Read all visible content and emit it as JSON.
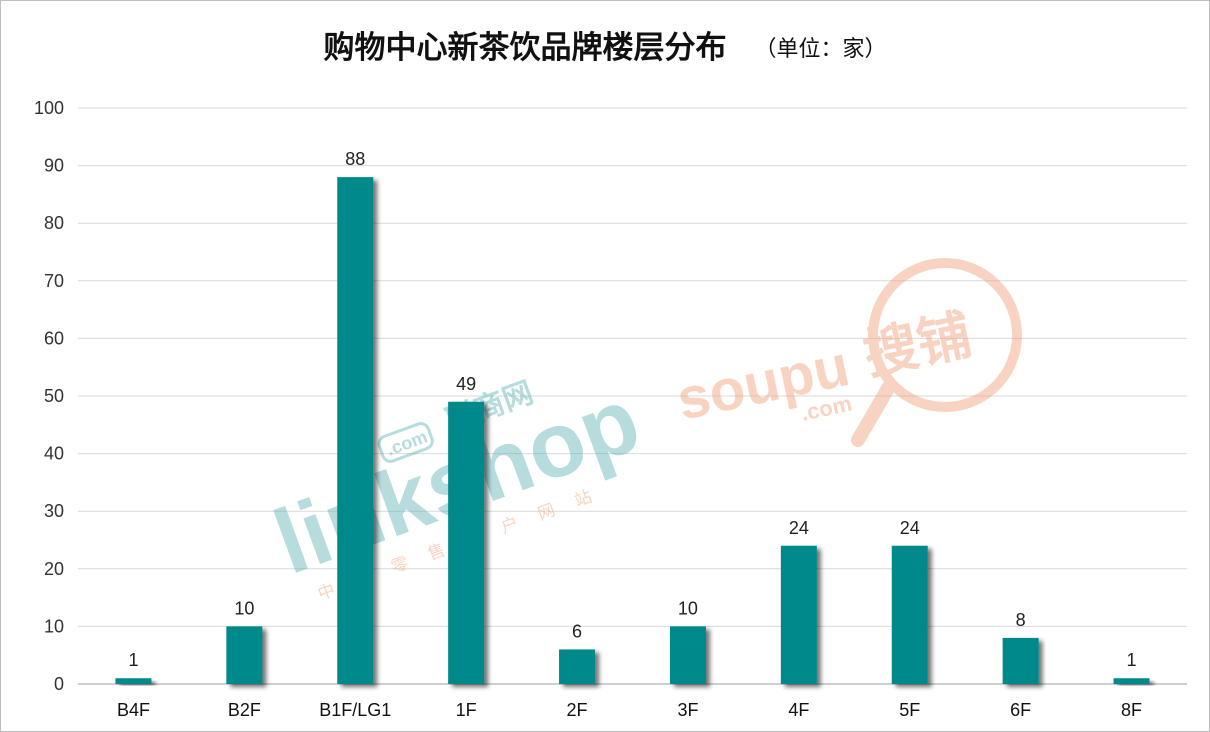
{
  "header": {
    "title": "购物中心新茶饮品牌楼层分布",
    "unit": "（单位：家）"
  },
  "watermarks": {
    "linkshop": {
      "brand": "linkshop",
      "com": ".com",
      "cn": "联商网",
      "sub": "中国零售门户网站"
    },
    "soupu": {
      "brand": "soupu",
      "cn": "搜铺",
      "com": ".com"
    }
  },
  "colors": {
    "bar": "#00898a",
    "grid": "#d9d9d9",
    "axis": "#bfbfbf",
    "watermark_teal": "#5fb3b8",
    "watermark_orange": "#f2a07a"
  },
  "chart_data": {
    "type": "bar",
    "title": "购物中心新茶饮品牌楼层分布",
    "unit": "（单位：家）",
    "categories": [
      "B4F",
      "B2F",
      "B1F/LG1",
      "1F",
      "2F",
      "3F",
      "4F",
      "5F",
      "6F",
      "8F"
    ],
    "values": [
      1,
      10,
      88,
      49,
      6,
      10,
      24,
      24,
      8,
      1
    ],
    "ylim": [
      0,
      100
    ],
    "yticks": [
      0,
      10,
      20,
      30,
      40,
      50,
      60,
      70,
      80,
      90,
      100
    ],
    "grid": true,
    "legend": "none",
    "data_labels": true
  }
}
